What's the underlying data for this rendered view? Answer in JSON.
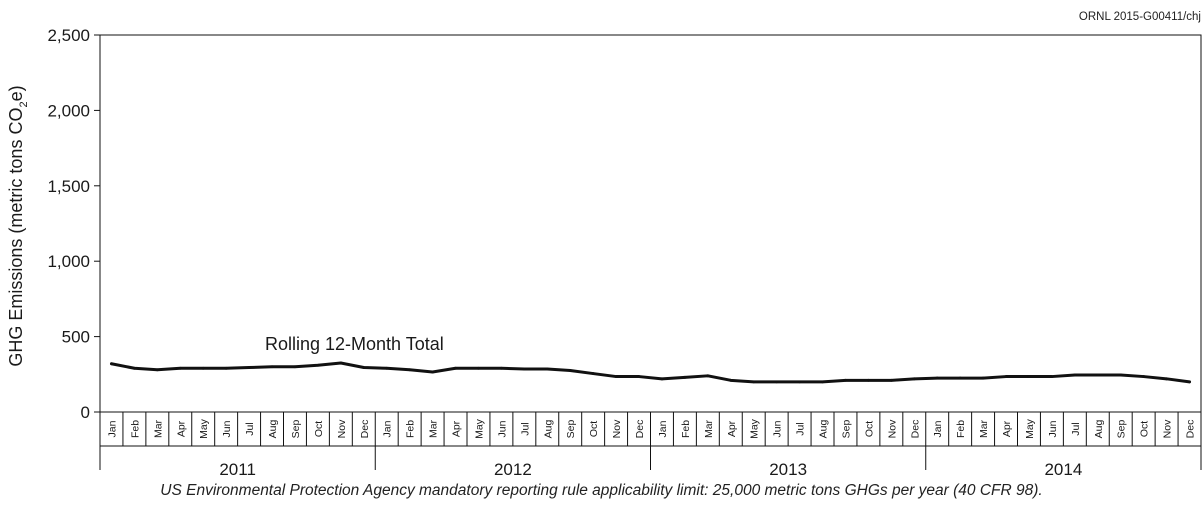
{
  "source_code": "ORNL 2015-G00411/chj",
  "footnote": "US Environmental Protection Agency mandatory reporting rule applicability limit: 25,000 metric tons GHGs per year (40 CFR 98).",
  "colors": {
    "line": "#111111",
    "axis": "#111111",
    "text": "#1a1a1a"
  },
  "chart_data": {
    "type": "line",
    "title": "",
    "ylabel": {
      "main": "GHG Emissions (metric tons CO",
      "subscript": "2",
      "tail": "e)"
    },
    "ylim": [
      0,
      2500
    ],
    "yticks": [
      0,
      500,
      1000,
      1500,
      2000,
      2500
    ],
    "ytick_labels": [
      "0",
      "500",
      "1,000",
      "1,500",
      "2,000",
      "2,500"
    ],
    "grid": false,
    "months": [
      "Jan",
      "Feb",
      "Mar",
      "Apr",
      "May",
      "Jun",
      "Jul",
      "Aug",
      "Sep",
      "Oct",
      "Nov",
      "Dec"
    ],
    "years": [
      "2011",
      "2012",
      "2013",
      "2014"
    ],
    "x": [
      "Jan 2011",
      "Feb 2011",
      "Mar 2011",
      "Apr 2011",
      "May 2011",
      "Jun 2011",
      "Jul 2011",
      "Aug 2011",
      "Sep 2011",
      "Oct 2011",
      "Nov 2011",
      "Dec 2011",
      "Jan 2012",
      "Feb 2012",
      "Mar 2012",
      "Apr 2012",
      "May 2012",
      "Jun 2012",
      "Jul 2012",
      "Aug 2012",
      "Sep 2012",
      "Oct 2012",
      "Nov 2012",
      "Dec 2012",
      "Jan 2013",
      "Feb 2013",
      "Mar 2013",
      "Apr 2013",
      "May 2013",
      "Jun 2013",
      "Jul 2013",
      "Aug 2013",
      "Sep 2013",
      "Oct 2013",
      "Nov 2013",
      "Dec 2013",
      "Jan 2014",
      "Feb 2014",
      "Mar 2014",
      "Apr 2014",
      "May 2014",
      "Jun 2014",
      "Jul 2014",
      "Aug 2014",
      "Sep 2014",
      "Oct 2014",
      "Nov 2014",
      "Dec 2014"
    ],
    "series": [
      {
        "name": "Rolling 12-Month Total",
        "values": [
          320,
          290,
          280,
          290,
          290,
          290,
          295,
          300,
          300,
          310,
          325,
          295,
          290,
          280,
          265,
          290,
          290,
          290,
          285,
          285,
          275,
          255,
          235,
          235,
          220,
          230,
          240,
          210,
          200,
          200,
          200,
          200,
          210,
          210,
          210,
          220,
          225,
          225,
          225,
          235,
          235,
          235,
          245,
          245,
          245,
          235,
          220,
          200
        ]
      }
    ]
  }
}
